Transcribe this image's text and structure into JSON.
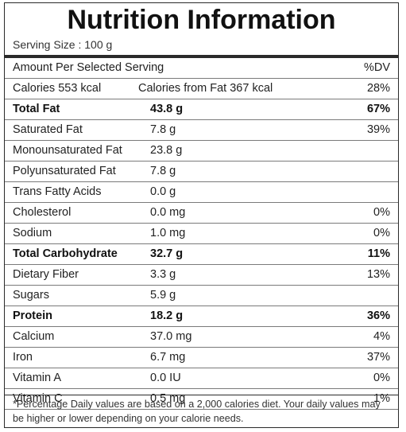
{
  "title": "Nutrition Information",
  "serving_size": "Serving Size : 100 g",
  "header": {
    "label": "Amount Per Selected Serving",
    "dv": "%DV"
  },
  "calories": {
    "calories": "Calories 553 kcal",
    "from_fat": "Calories from Fat 367 kcal",
    "dv": "28%"
  },
  "rows": [
    {
      "name": "Total Fat",
      "amount": "43.8 g",
      "dv": "67%",
      "bold": true
    },
    {
      "name": "Saturated Fat",
      "amount": "7.8 g",
      "dv": "39%",
      "bold": false
    },
    {
      "name": "Monounsaturated Fat",
      "amount": "23.8 g",
      "dv": "",
      "bold": false
    },
    {
      "name": "Polyunsaturated Fat",
      "amount": "7.8 g",
      "dv": "",
      "bold": false
    },
    {
      "name": "Trans Fatty Acids",
      "amount": "0.0 g",
      "dv": "",
      "bold": false
    },
    {
      "name": "Cholesterol",
      "amount": "0.0 mg",
      "dv": "0%",
      "bold": false
    },
    {
      "name": "Sodium",
      "amount": "1.0 mg",
      "dv": "0%",
      "bold": false
    },
    {
      "name": "Total Carbohydrate",
      "amount": "32.7 g",
      "dv": "11%",
      "bold": true
    },
    {
      "name": "Dietary Fiber",
      "amount": "3.3 g",
      "dv": "13%",
      "bold": false
    },
    {
      "name": "Sugars",
      "amount": "5.9 g",
      "dv": "",
      "bold": false
    },
    {
      "name": "Protein",
      "amount": "18.2 g",
      "dv": "36%",
      "bold": true
    },
    {
      "name": "Calcium",
      "amount": "37.0 mg",
      "dv": "4%",
      "bold": false
    },
    {
      "name": "Iron",
      "amount": "6.7 mg",
      "dv": "37%",
      "bold": false
    },
    {
      "name": "Vitamin A",
      "amount": "0.0 IU",
      "dv": "0%",
      "bold": false
    },
    {
      "name": "Vitamin C",
      "amount": "0.5 mg",
      "dv": "1%",
      "bold": false
    }
  ],
  "footnote": "*Percentage Daily values are based on a 2,000 calories diet. Your daily values may be higher or lower depending on your calorie needs."
}
